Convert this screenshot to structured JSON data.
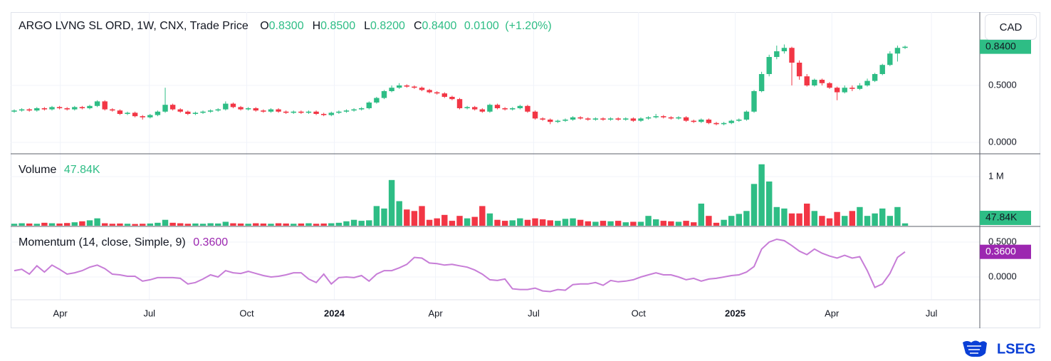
{
  "chart_data": {
    "type": "candlestick",
    "title": "ARGO LVNG SL ORD, 1W, CNX, Trade Price",
    "ohlc_legend": [
      {
        "key": "O",
        "value": "0.8300"
      },
      {
        "key": "H",
        "value": "0.8500"
      },
      {
        "key": "L",
        "value": "0.8200"
      },
      {
        "key": "C",
        "value": "0.8400"
      }
    ],
    "change": "0.0100",
    "change_percent": "(+1.20%)",
    "currency": "CAD",
    "up_color": "#2ebd85",
    "down_color": "#f23645",
    "open": [
      0.27,
      0.28,
      0.29,
      0.28,
      0.3,
      0.29,
      0.31,
      0.3,
      0.29,
      0.31,
      0.3,
      0.32,
      0.36,
      0.29,
      0.28,
      0.25,
      0.26,
      0.23,
      0.22,
      0.24,
      0.27,
      0.33,
      0.29,
      0.27,
      0.25,
      0.26,
      0.27,
      0.28,
      0.29,
      0.34,
      0.31,
      0.29,
      0.3,
      0.28,
      0.27,
      0.29,
      0.27,
      0.26,
      0.27,
      0.26,
      0.27,
      0.25,
      0.24,
      0.26,
      0.27,
      0.28,
      0.29,
      0.3,
      0.35,
      0.39,
      0.45,
      0.48,
      0.5,
      0.49,
      0.48,
      0.46,
      0.44,
      0.43,
      0.4,
      0.38,
      0.3,
      0.31,
      0.29,
      0.27,
      0.33,
      0.3,
      0.29,
      0.3,
      0.32,
      0.27,
      0.21,
      0.2,
      0.18,
      0.19,
      0.2,
      0.22,
      0.21,
      0.2,
      0.21,
      0.2,
      0.21,
      0.2,
      0.21,
      0.19,
      0.21,
      0.22,
      0.23,
      0.22,
      0.21,
      0.22,
      0.19,
      0.18,
      0.2,
      0.17,
      0.16,
      0.17,
      0.19,
      0.2,
      0.27,
      0.45,
      0.6,
      0.75,
      0.8,
      0.83,
      0.7,
      0.58,
      0.5,
      0.55,
      0.52,
      0.48,
      0.44,
      0.48,
      0.47,
      0.5,
      0.54,
      0.6,
      0.68,
      0.78,
      0.83
    ],
    "high": [
      0.29,
      0.3,
      0.3,
      0.31,
      0.31,
      0.32,
      0.32,
      0.31,
      0.32,
      0.32,
      0.33,
      0.37,
      0.37,
      0.3,
      0.29,
      0.27,
      0.27,
      0.24,
      0.25,
      0.28,
      0.48,
      0.34,
      0.3,
      0.28,
      0.27,
      0.28,
      0.29,
      0.3,
      0.36,
      0.35,
      0.32,
      0.31,
      0.31,
      0.29,
      0.3,
      0.3,
      0.28,
      0.28,
      0.28,
      0.28,
      0.28,
      0.26,
      0.27,
      0.28,
      0.29,
      0.3,
      0.31,
      0.36,
      0.4,
      0.46,
      0.5,
      0.52,
      0.51,
      0.5,
      0.49,
      0.47,
      0.45,
      0.44,
      0.41,
      0.39,
      0.32,
      0.32,
      0.3,
      0.34,
      0.34,
      0.31,
      0.31,
      0.33,
      0.33,
      0.28,
      0.22,
      0.21,
      0.2,
      0.21,
      0.23,
      0.23,
      0.22,
      0.22,
      0.22,
      0.22,
      0.22,
      0.22,
      0.22,
      0.22,
      0.23,
      0.25,
      0.24,
      0.23,
      0.23,
      0.23,
      0.2,
      0.21,
      0.21,
      0.18,
      0.18,
      0.2,
      0.21,
      0.28,
      0.46,
      0.62,
      0.77,
      0.85,
      0.86,
      0.84,
      0.72,
      0.6,
      0.56,
      0.56,
      0.53,
      0.49,
      0.5,
      0.5,
      0.52,
      0.56,
      0.61,
      0.69,
      0.8,
      0.85,
      0.85
    ],
    "low": [
      0.26,
      0.27,
      0.27,
      0.27,
      0.28,
      0.28,
      0.29,
      0.28,
      0.28,
      0.29,
      0.29,
      0.31,
      0.28,
      0.27,
      0.24,
      0.24,
      0.22,
      0.2,
      0.21,
      0.23,
      0.26,
      0.28,
      0.26,
      0.24,
      0.24,
      0.25,
      0.26,
      0.27,
      0.28,
      0.3,
      0.28,
      0.28,
      0.27,
      0.26,
      0.26,
      0.26,
      0.25,
      0.25,
      0.25,
      0.25,
      0.24,
      0.23,
      0.23,
      0.25,
      0.26,
      0.27,
      0.28,
      0.29,
      0.34,
      0.38,
      0.44,
      0.47,
      0.48,
      0.47,
      0.45,
      0.43,
      0.42,
      0.39,
      0.37,
      0.29,
      0.29,
      0.28,
      0.26,
      0.26,
      0.29,
      0.28,
      0.28,
      0.29,
      0.26,
      0.2,
      0.19,
      0.16,
      0.17,
      0.18,
      0.19,
      0.2,
      0.19,
      0.19,
      0.19,
      0.19,
      0.19,
      0.19,
      0.18,
      0.18,
      0.2,
      0.21,
      0.21,
      0.2,
      0.2,
      0.18,
      0.17,
      0.17,
      0.16,
      0.15,
      0.15,
      0.16,
      0.18,
      0.19,
      0.26,
      0.44,
      0.58,
      0.73,
      0.78,
      0.5,
      0.55,
      0.49,
      0.49,
      0.5,
      0.47,
      0.37,
      0.43,
      0.45,
      0.46,
      0.49,
      0.53,
      0.59,
      0.67,
      0.71,
      0.82
    ],
    "close": [
      0.28,
      0.29,
      0.28,
      0.3,
      0.29,
      0.31,
      0.3,
      0.29,
      0.31,
      0.3,
      0.32,
      0.36,
      0.29,
      0.28,
      0.25,
      0.26,
      0.23,
      0.22,
      0.24,
      0.27,
      0.33,
      0.29,
      0.27,
      0.25,
      0.26,
      0.27,
      0.28,
      0.29,
      0.34,
      0.31,
      0.29,
      0.3,
      0.28,
      0.27,
      0.29,
      0.27,
      0.26,
      0.27,
      0.26,
      0.27,
      0.25,
      0.24,
      0.26,
      0.27,
      0.28,
      0.29,
      0.3,
      0.35,
      0.39,
      0.45,
      0.48,
      0.5,
      0.49,
      0.48,
      0.46,
      0.44,
      0.43,
      0.4,
      0.38,
      0.3,
      0.31,
      0.29,
      0.27,
      0.33,
      0.3,
      0.29,
      0.3,
      0.32,
      0.27,
      0.21,
      0.2,
      0.18,
      0.19,
      0.2,
      0.22,
      0.21,
      0.2,
      0.21,
      0.2,
      0.21,
      0.2,
      0.21,
      0.19,
      0.21,
      0.22,
      0.23,
      0.22,
      0.21,
      0.22,
      0.19,
      0.18,
      0.2,
      0.17,
      0.16,
      0.17,
      0.19,
      0.2,
      0.27,
      0.45,
      0.6,
      0.75,
      0.8,
      0.83,
      0.7,
      0.58,
      0.5,
      0.55,
      0.52,
      0.48,
      0.44,
      0.48,
      0.47,
      0.5,
      0.54,
      0.6,
      0.68,
      0.78,
      0.83,
      0.84
    ],
    "last_price_label": "0.8400",
    "xlim": [
      -0.47,
      127.9
    ],
    "xticks": [
      {
        "value": 6.1,
        "label": "Apr"
      },
      {
        "value": 17.9,
        "label": "Jul"
      },
      {
        "value": 30.8,
        "label": "Oct"
      },
      {
        "value": 42.4,
        "label": "2024",
        "bold": true
      },
      {
        "value": 55.8,
        "label": "Apr"
      },
      {
        "value": 68.8,
        "label": "Jul"
      },
      {
        "value": 82.7,
        "label": "Oct"
      },
      {
        "value": 95.5,
        "label": "2025",
        "bold": true
      },
      {
        "value": 108.3,
        "label": "Apr"
      },
      {
        "value": 121.5,
        "label": "Jul"
      }
    ],
    "ylim": [
      -0.094,
      1.144
    ],
    "yticks": [
      {
        "value": 0,
        "label": "0.0000"
      },
      {
        "value": 0.5,
        "label": "0.5000"
      }
    ],
    "grid": true,
    "volume": {
      "title": "Volume",
      "last_label": "47.84K",
      "values": [
        40000,
        50000,
        45000,
        40000,
        60000,
        50000,
        45000,
        55000,
        70000,
        90000,
        110000,
        150000,
        50000,
        40000,
        45000,
        40000,
        35000,
        40000,
        45000,
        60000,
        120000,
        60000,
        50000,
        40000,
        45000,
        40000,
        50000,
        45000,
        80000,
        50000,
        45000,
        40000,
        50000,
        45000,
        40000,
        50000,
        45000,
        40000,
        45000,
        50000,
        40000,
        45000,
        50000,
        60000,
        90000,
        120000,
        100000,
        110000,
        400000,
        350000,
        930000,
        500000,
        330000,
        300000,
        400000,
        120000,
        150000,
        220000,
        100000,
        200000,
        150000,
        180000,
        400000,
        250000,
        120000,
        100000,
        110000,
        150000,
        120000,
        150000,
        130000,
        110000,
        100000,
        140000,
        150000,
        120000,
        90000,
        80000,
        100000,
        90000,
        100000,
        70000,
        80000,
        80000,
        200000,
        130000,
        100000,
        90000,
        80000,
        100000,
        70000,
        450000,
        200000,
        60000,
        120000,
        200000,
        240000,
        300000,
        850000,
        1250000,
        900000,
        380000,
        350000,
        250000,
        250000,
        450000,
        300000,
        200000,
        150000,
        280000,
        200000,
        300000,
        380000,
        200000,
        250000,
        350000,
        200000,
        380000,
        47840
      ],
      "ylim": [
        0,
        1449000
      ],
      "yticks": [
        {
          "value": 1000000,
          "label": "1 M"
        }
      ]
    },
    "momentum": {
      "title": "Momentum (14, close, Simple, 9)",
      "last_label": "0.3600",
      "color": "#c77dd7",
      "label_color": "#9c27b0",
      "values": [
        0.09,
        0.11,
        0.04,
        0.16,
        0.07,
        0.17,
        0.11,
        0.04,
        0.06,
        0.09,
        0.14,
        0.17,
        0.12,
        0.04,
        0.03,
        0.01,
        0.01,
        -0.06,
        -0.04,
        -0.01,
        -0.01,
        -0.01,
        -0.02,
        -0.1,
        -0.08,
        -0.03,
        0.03,
        0.0,
        0.09,
        0.06,
        0.05,
        0.08,
        0.05,
        0.02,
        0.0,
        0.01,
        0.03,
        0.06,
        0.06,
        -0.03,
        -0.08,
        0.04,
        -0.1,
        -0.01,
        0.0,
        -0.01,
        0.02,
        -0.06,
        0.04,
        0.09,
        0.09,
        0.13,
        0.18,
        0.28,
        0.27,
        0.2,
        0.19,
        0.17,
        0.18,
        0.16,
        0.14,
        0.1,
        0.04,
        -0.04,
        -0.05,
        -0.03,
        -0.17,
        -0.18,
        -0.18,
        -0.16,
        -0.2,
        -0.21,
        -0.18,
        -0.19,
        -0.11,
        -0.1,
        -0.1,
        -0.08,
        -0.12,
        -0.05,
        -0.07,
        -0.06,
        -0.04,
        0.0,
        0.03,
        0.06,
        0.03,
        0.03,
        0.0,
        -0.04,
        -0.02,
        -0.06,
        -0.03,
        -0.02,
        0.0,
        0.02,
        0.03,
        0.07,
        0.15,
        0.4,
        0.5,
        0.54,
        0.52,
        0.45,
        0.37,
        0.32,
        0.4,
        0.34,
        0.3,
        0.27,
        0.31,
        0.27,
        0.29,
        0.09,
        -0.15,
        -0.1,
        0.05,
        0.28,
        0.36
      ],
      "ylim": [
        -0.327,
        0.714
      ],
      "yticks": [
        {
          "value": 0,
          "label": "0.0000"
        },
        {
          "value": 0.5,
          "label": "0.5000"
        }
      ]
    }
  },
  "branding": {
    "logo": "LSEG"
  }
}
